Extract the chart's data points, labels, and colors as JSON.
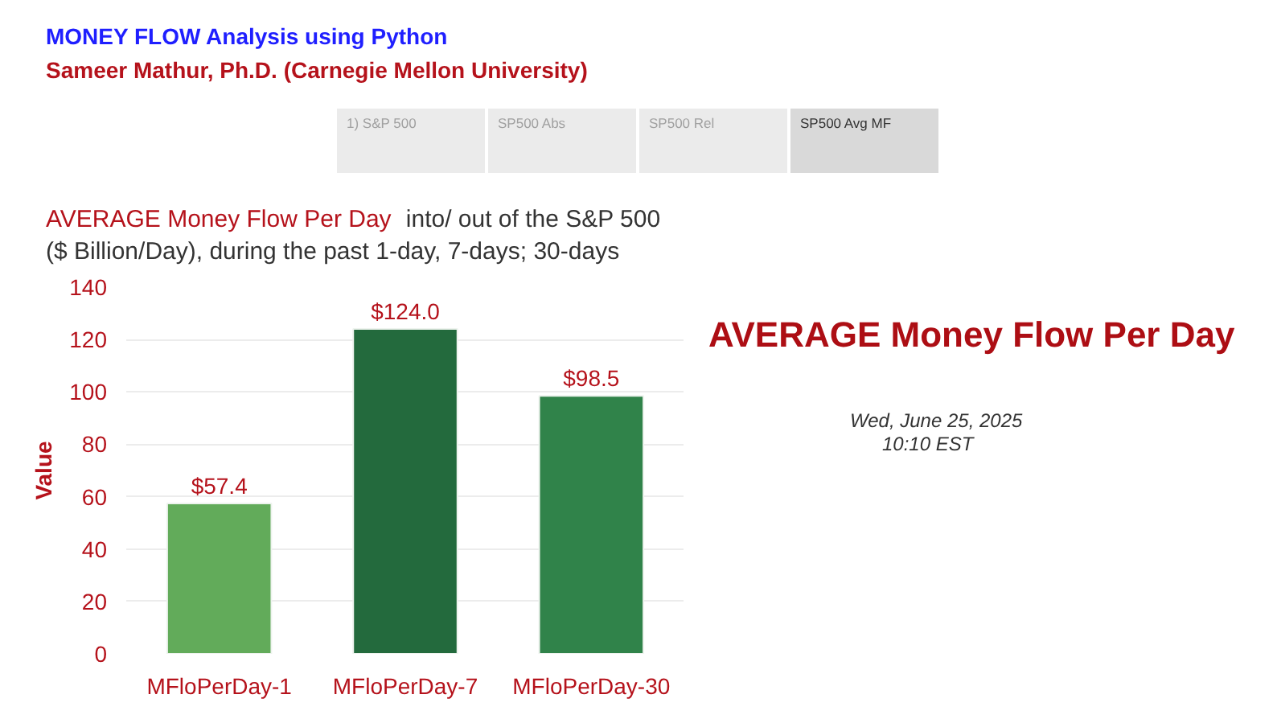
{
  "chart_data": {
    "type": "bar",
    "title": "AVERAGE Money Flow Per Day into/ out of the S&P 500",
    "subtitle": "($ Billion/Day), during the past 1-day, 7-days; 30-days",
    "ylabel": "Value",
    "categories": [
      "MFloPerDay-1",
      "MFloPerDay-7",
      "MFloPerDay-30"
    ],
    "values": [
      57.4,
      124.0,
      98.5
    ],
    "colors": [
      "#62ab5a",
      "#236a3d",
      "#30834a"
    ],
    "value_labels": [
      "$57.4",
      "$124.0",
      "$98.5"
    ],
    "ylim": [
      0,
      140
    ],
    "yticks": [
      0,
      20,
      40,
      60,
      80,
      100,
      120,
      140
    ],
    "grid": "y",
    "annotations": [
      "MONEY FLOW Analysis using Python",
      "Sameer Mathur, Ph.D. (Carnegie Mellon University)",
      "1) S&P 500",
      "SP500 Abs",
      "SP500 Rel",
      "SP500 Avg MF",
      "AVERAGE Money Flow Per Day",
      "Wed, June 25, 2025",
      "10:10 EST"
    ]
  }
}
